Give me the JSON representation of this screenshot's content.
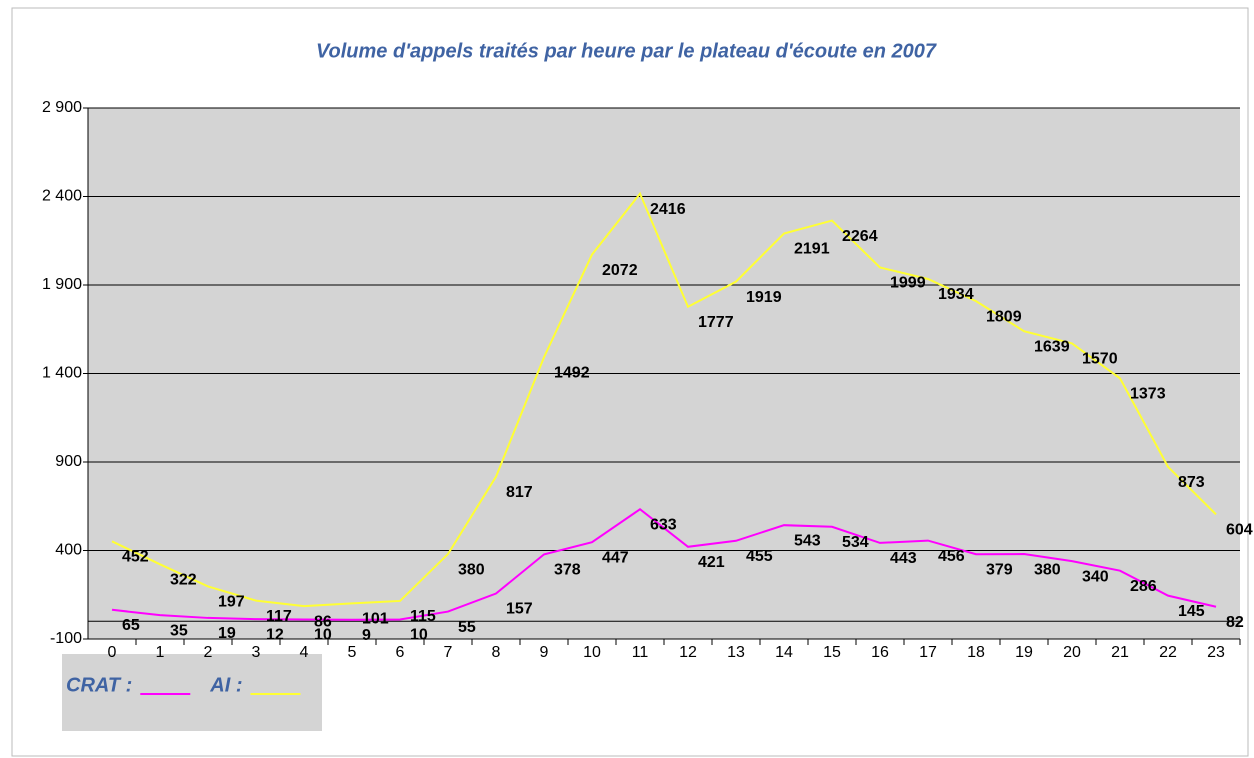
{
  "chart_data": {
    "type": "line",
    "title": "Volume d'appels traités par heure par le plateau d'écoute en 2007",
    "categories": [
      "0",
      "1",
      "2",
      "3",
      "4",
      "5",
      "6",
      "7",
      "8",
      "9",
      "10",
      "11",
      "12",
      "13",
      "14",
      "15",
      "16",
      "17",
      "18",
      "19",
      "20",
      "21",
      "22",
      "23"
    ],
    "series": [
      {
        "name": "CRAT :",
        "color": "#ff00ff",
        "values": [
          65,
          35,
          19,
          12,
          10,
          9,
          10,
          55,
          157,
          378,
          447,
          633,
          421,
          455,
          543,
          534,
          443,
          456,
          379,
          380,
          340,
          286,
          145,
          82
        ]
      },
      {
        "name": "AI :",
        "color": "#ffff33",
        "values": [
          452,
          322,
          197,
          117,
          86,
          101,
          115,
          380,
          817,
          1492,
          2072,
          2416,
          1777,
          1919,
          2191,
          2264,
          1999,
          1934,
          1809,
          1639,
          1570,
          1373,
          873,
          604
        ]
      }
    ],
    "ylim": [
      -100,
      2900
    ],
    "yticks": [
      {
        "value": 2900,
        "label": "2 900"
      },
      {
        "value": 2400,
        "label": "2 400"
      },
      {
        "value": 1900,
        "label": "1 900"
      },
      {
        "value": 1400,
        "label": "1 400"
      },
      900,
      400,
      -100
    ],
    "grid": true
  }
}
